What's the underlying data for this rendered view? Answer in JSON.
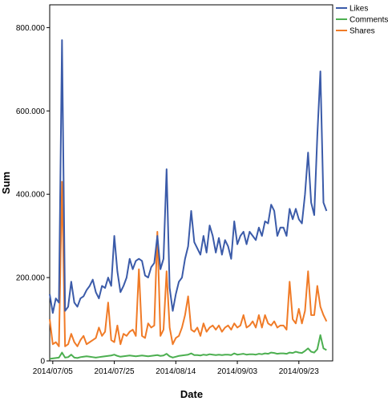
{
  "chart_data": {
    "type": "line",
    "xlabel": "Date",
    "ylabel": "Sum",
    "ylim": [
      0,
      820000
    ],
    "yticks": [
      {
        "value": 0,
        "label": "0"
      },
      {
        "value": 200000,
        "label": "200.000"
      },
      {
        "value": 400000,
        "label": "400.000"
      },
      {
        "value": 600000,
        "label": "600.000"
      },
      {
        "value": 800000,
        "label": "800.000"
      }
    ],
    "xlim": [
      "2014-07-04",
      "2014-10-04"
    ],
    "xticks": [
      {
        "date": "2014-07-05",
        "label": "2014/07/05"
      },
      {
        "date": "2014-07-25",
        "label": "2014/07/25"
      },
      {
        "date": "2014-08-14",
        "label": "2014/08/14"
      },
      {
        "date": "2014-09-03",
        "label": "2014/09/03"
      },
      {
        "date": "2014-09-23",
        "label": "2014/09/23"
      }
    ],
    "legend_position": "top-right",
    "grid": false,
    "x": [
      "2014-07-04",
      "2014-07-05",
      "2014-07-06",
      "2014-07-07",
      "2014-07-08",
      "2014-07-09",
      "2014-07-10",
      "2014-07-11",
      "2014-07-12",
      "2014-07-13",
      "2014-07-14",
      "2014-07-15",
      "2014-07-16",
      "2014-07-17",
      "2014-07-18",
      "2014-07-19",
      "2014-07-20",
      "2014-07-21",
      "2014-07-22",
      "2014-07-23",
      "2014-07-24",
      "2014-07-25",
      "2014-07-26",
      "2014-07-27",
      "2014-07-28",
      "2014-07-29",
      "2014-07-30",
      "2014-07-31",
      "2014-08-01",
      "2014-08-02",
      "2014-08-03",
      "2014-08-04",
      "2014-08-05",
      "2014-08-06",
      "2014-08-07",
      "2014-08-08",
      "2014-08-09",
      "2014-08-10",
      "2014-08-11",
      "2014-08-12",
      "2014-08-13",
      "2014-08-14",
      "2014-08-15",
      "2014-08-16",
      "2014-08-17",
      "2014-08-18",
      "2014-08-19",
      "2014-08-20",
      "2014-08-21",
      "2014-08-22",
      "2014-08-23",
      "2014-08-24",
      "2014-08-25",
      "2014-08-26",
      "2014-08-27",
      "2014-08-28",
      "2014-08-29",
      "2014-08-30",
      "2014-08-31",
      "2014-09-01",
      "2014-09-02",
      "2014-09-03",
      "2014-09-04",
      "2014-09-05",
      "2014-09-06",
      "2014-09-07",
      "2014-09-08",
      "2014-09-09",
      "2014-09-10",
      "2014-09-11",
      "2014-09-12",
      "2014-09-13",
      "2014-09-14",
      "2014-09-15",
      "2014-09-16",
      "2014-09-17",
      "2014-09-18",
      "2014-09-19",
      "2014-09-20",
      "2014-09-21",
      "2014-09-22",
      "2014-09-23",
      "2014-09-24",
      "2014-09-25",
      "2014-09-26",
      "2014-09-27",
      "2014-09-28",
      "2014-09-29",
      "2014-09-30",
      "2014-10-01",
      "2014-10-02"
    ],
    "series": [
      {
        "name": "Likes",
        "color": "#3b5ba9",
        "values": [
          160000,
          115000,
          150000,
          140000,
          770000,
          120000,
          130000,
          190000,
          140000,
          130000,
          150000,
          155000,
          170000,
          180000,
          195000,
          165000,
          150000,
          180000,
          175000,
          200000,
          180000,
          300000,
          215000,
          165000,
          180000,
          200000,
          245000,
          220000,
          240000,
          245000,
          240000,
          205000,
          200000,
          225000,
          235000,
          300000,
          220000,
          245000,
          460000,
          175000,
          120000,
          160000,
          190000,
          200000,
          245000,
          275000,
          360000,
          285000,
          270000,
          255000,
          300000,
          260000,
          325000,
          300000,
          260000,
          295000,
          255000,
          290000,
          275000,
          245000,
          335000,
          280000,
          300000,
          310000,
          280000,
          310000,
          300000,
          290000,
          320000,
          300000,
          335000,
          330000,
          375000,
          360000,
          300000,
          320000,
          320000,
          300000,
          365000,
          340000,
          365000,
          340000,
          330000,
          400000,
          500000,
          380000,
          350000,
          540000,
          695000,
          380000,
          360000
        ]
      },
      {
        "name": "Comments",
        "color": "#4caf50",
        "values": [
          5000,
          6000,
          7000,
          8000,
          20000,
          8000,
          9000,
          15000,
          8000,
          7000,
          9000,
          10000,
          11000,
          10000,
          9000,
          8000,
          9000,
          10000,
          11000,
          12000,
          13000,
          15000,
          12000,
          10000,
          11000,
          12000,
          13000,
          12000,
          11000,
          12000,
          13000,
          12000,
          11000,
          12000,
          13000,
          14000,
          12000,
          13000,
          17000,
          11000,
          8000,
          10000,
          12000,
          13000,
          14000,
          15000,
          18000,
          14000,
          14000,
          13000,
          15000,
          14000,
          16000,
          15000,
          14000,
          15000,
          14000,
          15000,
          15000,
          14000,
          18000,
          15000,
          16000,
          17000,
          15000,
          16000,
          16000,
          15000,
          17000,
          16000,
          18000,
          17000,
          20000,
          19000,
          17000,
          18000,
          18000,
          17000,
          20000,
          19000,
          22000,
          20000,
          19000,
          24000,
          30000,
          22000,
          20000,
          28000,
          62000,
          30000,
          26000
        ]
      },
      {
        "name": "Shares",
        "color": "#f07b27",
        "values": [
          100000,
          40000,
          45000,
          35000,
          430000,
          35000,
          40000,
          65000,
          45000,
          35000,
          50000,
          60000,
          40000,
          45000,
          50000,
          55000,
          80000,
          60000,
          70000,
          140000,
          50000,
          45000,
          85000,
          40000,
          65000,
          60000,
          70000,
          75000,
          60000,
          220000,
          60000,
          55000,
          90000,
          80000,
          85000,
          310000,
          60000,
          75000,
          215000,
          80000,
          40000,
          55000,
          60000,
          80000,
          110000,
          155000,
          75000,
          70000,
          80000,
          60000,
          90000,
          70000,
          80000,
          85000,
          75000,
          85000,
          70000,
          80000,
          85000,
          75000,
          90000,
          80000,
          85000,
          110000,
          80000,
          85000,
          95000,
          80000,
          110000,
          80000,
          110000,
          90000,
          85000,
          95000,
          80000,
          85000,
          85000,
          75000,
          190000,
          100000,
          90000,
          125000,
          90000,
          120000,
          215000,
          110000,
          110000,
          180000,
          130000,
          110000,
          95000
        ]
      }
    ]
  }
}
